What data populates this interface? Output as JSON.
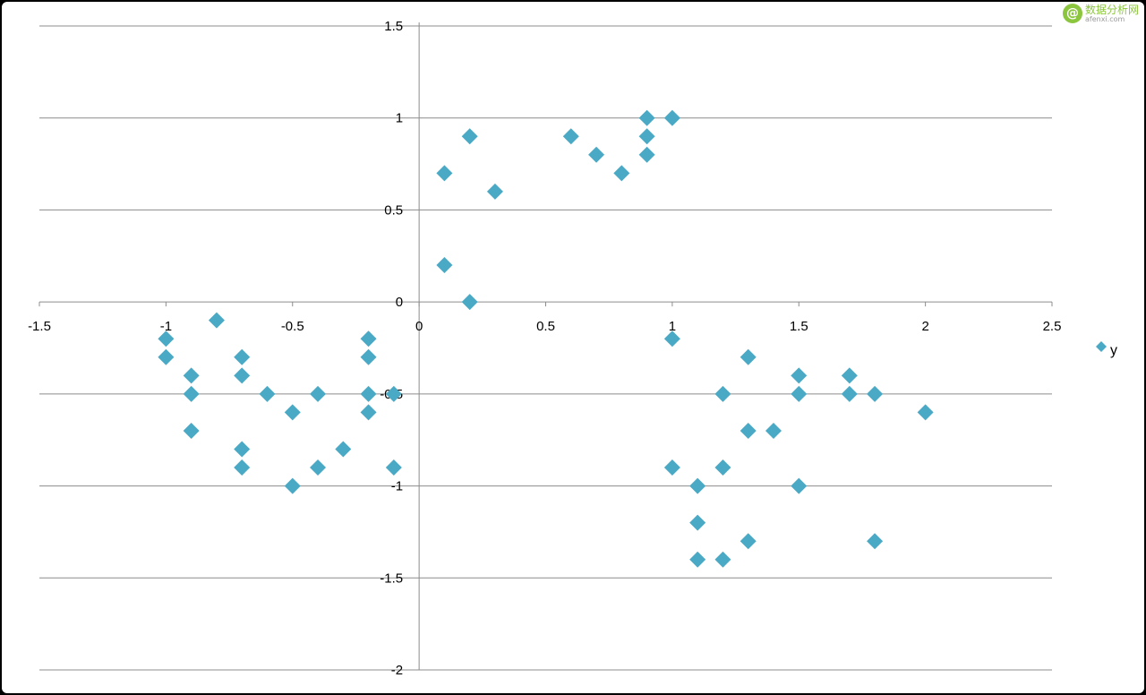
{
  "chart_data": {
    "type": "scatter",
    "title": "",
    "xlabel": "",
    "ylabel": "",
    "xlim": [
      -1.5,
      2.5
    ],
    "ylim": [
      -2,
      1.5
    ],
    "x_ticks": [
      "-1.5",
      "-1",
      "-0.5",
      "0",
      "0.5",
      "1",
      "1.5",
      "2",
      "2.5"
    ],
    "y_ticks": [
      "1.5",
      "1",
      "0.5",
      "0",
      "-0.5",
      "-1",
      "-1.5",
      "-2"
    ],
    "grid": "horizontal",
    "legend_position": "right",
    "series": [
      {
        "name": "y",
        "color": "#4AA9C5",
        "marker": "diamond",
        "points": [
          [
            0.1,
            0.7
          ],
          [
            0.2,
            0.9
          ],
          [
            0.3,
            0.6
          ],
          [
            0.1,
            0.2
          ],
          [
            0.2,
            0.0
          ],
          [
            0.6,
            0.9
          ],
          [
            0.7,
            0.8
          ],
          [
            0.8,
            0.7
          ],
          [
            0.9,
            1.0
          ],
          [
            0.9,
            0.9
          ],
          [
            0.9,
            0.8
          ],
          [
            1.0,
            1.0
          ],
          [
            -1.0,
            -0.2
          ],
          [
            -1.0,
            -0.3
          ],
          [
            -0.8,
            -0.1
          ],
          [
            -0.9,
            -0.4
          ],
          [
            -0.9,
            -0.5
          ],
          [
            -0.9,
            -0.7
          ],
          [
            -0.7,
            -0.3
          ],
          [
            -0.7,
            -0.4
          ],
          [
            -0.7,
            -0.8
          ],
          [
            -0.7,
            -0.9
          ],
          [
            -0.6,
            -0.5
          ],
          [
            -0.5,
            -0.6
          ],
          [
            -0.5,
            -1.0
          ],
          [
            -0.4,
            -0.5
          ],
          [
            -0.4,
            -0.9
          ],
          [
            -0.3,
            -0.8
          ],
          [
            -0.2,
            -0.2
          ],
          [
            -0.2,
            -0.3
          ],
          [
            -0.2,
            -0.5
          ],
          [
            -0.2,
            -0.6
          ],
          [
            -0.1,
            -0.5
          ],
          [
            -0.1,
            -0.9
          ],
          [
            1.0,
            -0.2
          ],
          [
            1.3,
            -0.3
          ],
          [
            1.2,
            -0.5
          ],
          [
            1.5,
            -0.4
          ],
          [
            1.5,
            -0.5
          ],
          [
            1.7,
            -0.4
          ],
          [
            1.7,
            -0.5
          ],
          [
            1.8,
            -0.5
          ],
          [
            2.0,
            -0.6
          ],
          [
            1.3,
            -0.7
          ],
          [
            1.4,
            -0.7
          ],
          [
            1.0,
            -0.9
          ],
          [
            1.2,
            -0.9
          ],
          [
            1.1,
            -1.0
          ],
          [
            1.5,
            -1.0
          ],
          [
            1.1,
            -1.2
          ],
          [
            1.3,
            -1.3
          ],
          [
            1.8,
            -1.3
          ],
          [
            1.1,
            -1.4
          ],
          [
            1.2,
            -1.4
          ]
        ]
      }
    ]
  },
  "watermark": {
    "logo_char": "@",
    "text": "数据分析网",
    "url": "afenxi.com"
  }
}
